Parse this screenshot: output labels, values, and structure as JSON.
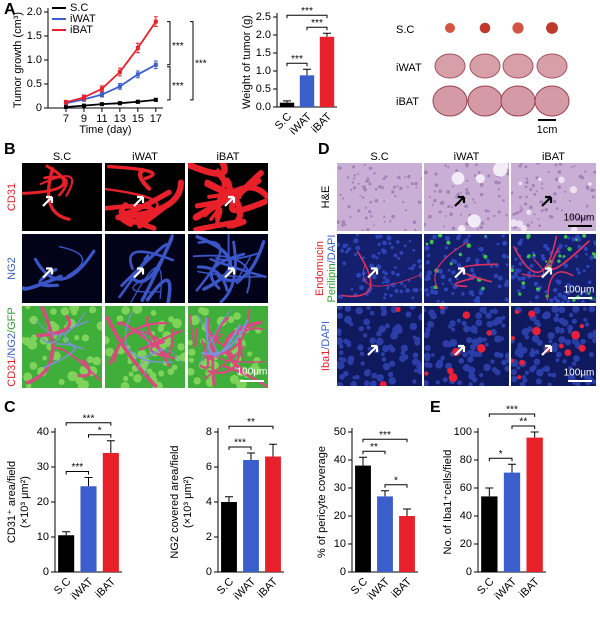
{
  "panel_labels": [
    "A",
    "B",
    "C",
    "D",
    "E"
  ],
  "chart_data": [
    {
      "type": "line",
      "ylabel": "Tumor growth (cm³)",
      "xlabel": "Time (day)",
      "x": [
        7,
        9,
        11,
        13,
        15,
        17
      ],
      "xlim": [
        5,
        17.8
      ],
      "xticks": [
        7,
        9,
        11,
        13,
        15,
        17
      ],
      "ylim": [
        0,
        2
      ],
      "yticks": [
        0,
        0.5,
        {
          "value": 1,
          "label": "1.0"
        },
        1.5,
        {
          "value": 2,
          "label": "2.0"
        }
      ],
      "series": [
        {
          "name": "S.C",
          "color": "#000000",
          "values": [
            0.02,
            0.05,
            0.08,
            0.1,
            0.13,
            0.17
          ],
          "errors": [
            0.01,
            0.02,
            0.02,
            0.03,
            0.03,
            0.03
          ]
        },
        {
          "name": "iWAT",
          "color": "#3a5fcd",
          "values": [
            0.1,
            0.18,
            0.28,
            0.45,
            0.7,
            0.9
          ],
          "errors": [
            0.03,
            0.04,
            0.05,
            0.06,
            0.07,
            0.08
          ]
        },
        {
          "name": "iBAT",
          "color": "#e8202a",
          "values": [
            0.12,
            0.22,
            0.4,
            0.75,
            1.25,
            1.8
          ],
          "errors": [
            0.04,
            0.05,
            0.06,
            0.08,
            0.1,
            0.1
          ]
        }
      ],
      "annotations": [
        "***",
        "***",
        "***"
      ]
    },
    {
      "type": "bar",
      "ylabel": "Weight of tumor (g)",
      "categories": [
        "S.C",
        "iWAT",
        "iBAT"
      ],
      "values": [
        0.12,
        0.88,
        1.95
      ],
      "errors": [
        0.05,
        0.17,
        0.1
      ],
      "colors": [
        "#000000",
        "#3a5fcd",
        "#e8202a"
      ],
      "ylim": [
        0,
        2.5
      ],
      "yticks": [
        {
          "value": 0,
          "label": "0.0"
        },
        0.5,
        {
          "value": 1,
          "label": "1.0"
        },
        1.5,
        {
          "value": 2,
          "label": "2.0"
        },
        2.5
      ],
      "annotations": [
        "***",
        "***",
        "***"
      ]
    },
    {
      "type": "bar",
      "ylabel": [
        "CD31⁺ area/field",
        "(×10³ μm²)"
      ],
      "categories": [
        "S.C",
        "iWAT",
        "iBAT"
      ],
      "values": [
        10.5,
        24.5,
        34
      ],
      "errors": [
        1,
        2.5,
        3.5
      ],
      "colors": [
        "#000000",
        "#3a5fcd",
        "#e8202a"
      ],
      "ylim": [
        0,
        40
      ],
      "yticks": [
        0,
        10,
        20,
        30,
        40
      ],
      "annotations": [
        "***",
        "***",
        "*"
      ]
    },
    {
      "type": "bar",
      "ylabel": [
        "NG2 covered area/field",
        "(×10³ μm²)"
      ],
      "categories": [
        "S.C",
        "iWAT",
        "iBAT"
      ],
      "values": [
        4.0,
        6.4,
        6.6
      ],
      "errors": [
        0.3,
        0.4,
        0.7
      ],
      "colors": [
        "#000000",
        "#3a5fcd",
        "#e8202a"
      ],
      "ylim": [
        0,
        8
      ],
      "yticks": [
        0,
        2,
        4,
        6,
        8
      ],
      "annotations": [
        "**",
        "***"
      ]
    },
    {
      "type": "bar",
      "ylabel": "% of pericyte coverage",
      "categories": [
        "S.C",
        "iWAT",
        "iBAT"
      ],
      "values": [
        38,
        27,
        20
      ],
      "errors": [
        3,
        2,
        2.5
      ],
      "colors": [
        "#000000",
        "#3a5fcd",
        "#e8202a"
      ],
      "ylim": [
        0,
        50
      ],
      "yticks": [
        0,
        10,
        20,
        30,
        40,
        50
      ],
      "annotations": [
        "***",
        "**",
        "*"
      ]
    },
    {
      "type": "bar",
      "ylabel": "No. of Iba1⁺cells/field",
      "categories": [
        "S.C",
        "iWAT",
        "iBAT"
      ],
      "values": [
        54,
        71,
        96
      ],
      "errors": [
        6,
        6,
        4
      ],
      "colors": [
        "#000000",
        "#3a5fcd",
        "#e8202a"
      ],
      "ylim": [
        0,
        100
      ],
      "yticks": [
        0,
        20,
        40,
        60,
        80,
        100
      ],
      "annotations": [
        "***",
        "*",
        "**"
      ]
    }
  ],
  "photos": {
    "row_labels": [
      "S.C",
      "iWAT",
      "iBAT"
    ],
    "scale_bar": "1cm"
  },
  "panel_b": {
    "columns": [
      "S.C",
      "iWAT",
      "iBAT"
    ],
    "rows": [
      [
        [
          {
            "text": "CD31",
            "color": "#e8202a"
          }
        ]
      ],
      [
        [
          {
            "text": "NG2",
            "color": "#3a5fcd"
          }
        ]
      ],
      [
        [
          {
            "text": "CD31",
            "color": "#e8202a"
          },
          {
            "text": "/NG2",
            "color": "#3a5fcd"
          },
          {
            "text": "/GFP",
            "color": "#2ca02c"
          }
        ]
      ]
    ],
    "scale_bar": "100μm"
  },
  "panel_d": {
    "columns": [
      "S.C",
      "iWAT",
      "iBAT"
    ],
    "rows": [
      [
        [
          {
            "text": "H&E",
            "color": "#000000"
          }
        ]
      ],
      [
        [
          {
            "text": "Endomucin",
            "color": "#e8202a"
          }
        ],
        [
          {
            "text": "Perilipin",
            "color": "#2ca02c"
          },
          {
            "text": "/DAPI",
            "color": "#3a5fcd"
          }
        ]
      ],
      [
        [
          {
            "text": "Iba1",
            "color": "#e8202a"
          },
          {
            "text": "/DAPI",
            "color": "#3a5fcd"
          }
        ]
      ]
    ],
    "scale_bars": [
      "100μm",
      "100μm",
      "100μm"
    ]
  }
}
